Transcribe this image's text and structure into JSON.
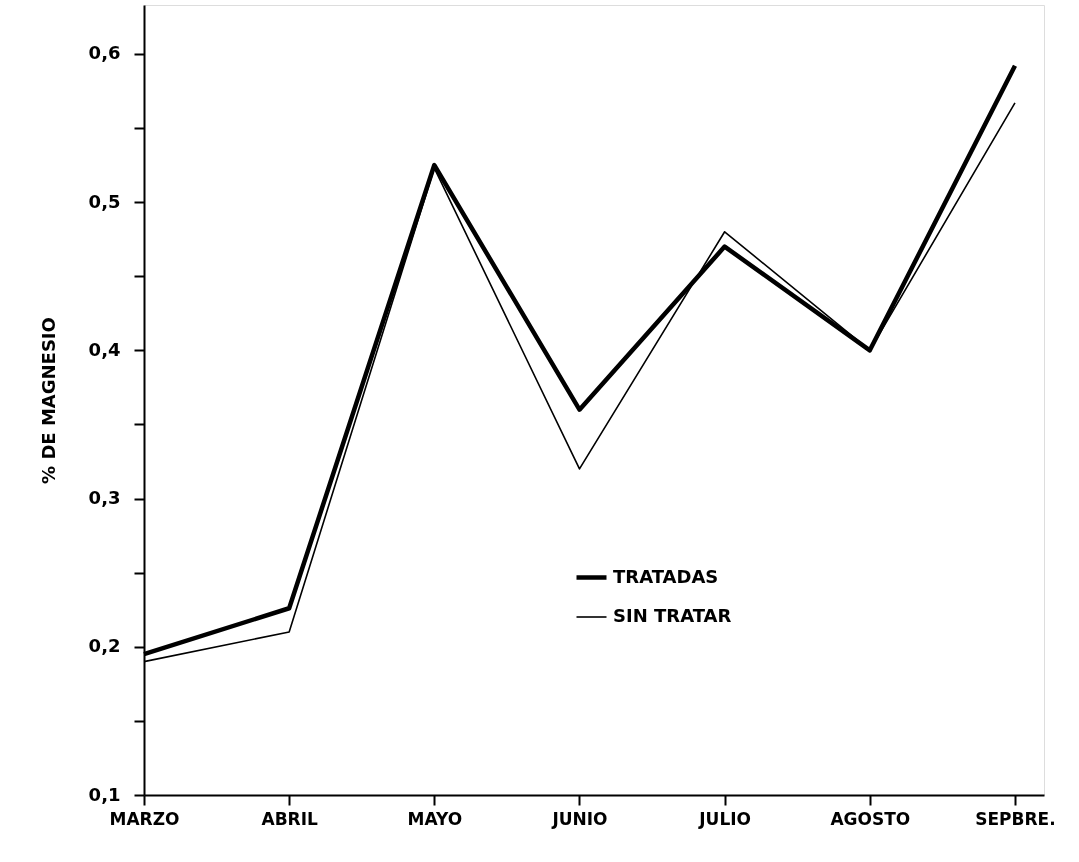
{
  "chart_data": {
    "type": "line",
    "ylabel": "% DE MAGNESIO",
    "categories": [
      "MARZO",
      "ABRIL",
      "MAYO",
      "JUNIO",
      "JULIO",
      "AGOSTO",
      "SEPBRE."
    ],
    "series": [
      {
        "name": "TRATADAS",
        "color": "#000000",
        "values": [
          0.195,
          0.226,
          0.525,
          0.36,
          0.47,
          0.4,
          0.592
        ]
      },
      {
        "name": "SIN TRATAR",
        "color": "#000000",
        "values": [
          0.19,
          0.21,
          0.523,
          0.32,
          0.48,
          0.4,
          0.567
        ]
      }
    ],
    "ylim": [
      0.1,
      0.633
    ],
    "yticks": [
      {
        "value": 0.1,
        "label": "0,1"
      },
      {
        "value": 0.15,
        "label": null
      },
      {
        "value": 0.2,
        "label": "0,2"
      },
      {
        "value": 0.25,
        "label": null
      },
      {
        "value": 0.3,
        "label": "0,3"
      },
      {
        "value": 0.35,
        "label": null
      },
      {
        "value": 0.4,
        "label": "0,4"
      },
      {
        "value": 0.45,
        "label": null
      },
      {
        "value": 0.5,
        "label": "0,5"
      },
      {
        "value": 0.55,
        "label": null
      },
      {
        "value": 0.6,
        "label": "0,6"
      }
    ],
    "grid": false,
    "legend": "center",
    "marker": "none",
    "line_style": "solid"
  }
}
